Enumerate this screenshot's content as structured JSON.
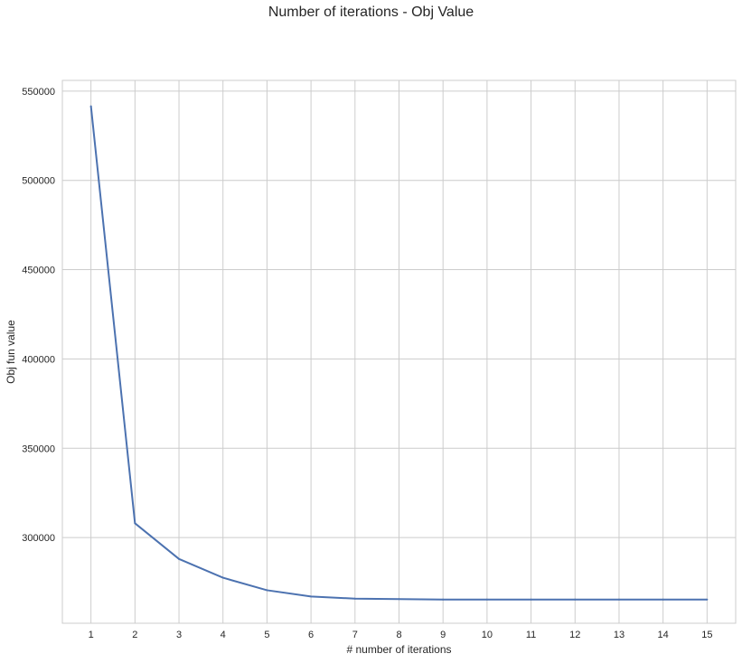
{
  "chart_data": {
    "type": "line",
    "title": "Number of iterations - Obj Value",
    "xlabel": "# number of iterations",
    "ylabel": "Obj fun value",
    "x": [
      1,
      2,
      3,
      4,
      5,
      6,
      7,
      8,
      9,
      10,
      11,
      12,
      13,
      14,
      15
    ],
    "series": [
      {
        "values": [
          541500,
          308000,
          288000,
          277500,
          270500,
          267000,
          265800,
          265500,
          265300,
          265300,
          265300,
          265300,
          265300,
          265300,
          265300
        ],
        "color": "#4C72B0"
      }
    ],
    "xlim": [
      0.35,
      15.65
    ],
    "ylim": [
      252000,
      556000
    ],
    "xticks": [
      1,
      2,
      3,
      4,
      5,
      6,
      7,
      8,
      9,
      10,
      11,
      12,
      13,
      14,
      15
    ],
    "yticks": [
      300000,
      350000,
      400000,
      450000,
      500000,
      550000
    ],
    "grid": true,
    "colors": {
      "grid": "#cccccc",
      "spine": "#cccccc",
      "text": "#262626"
    }
  }
}
